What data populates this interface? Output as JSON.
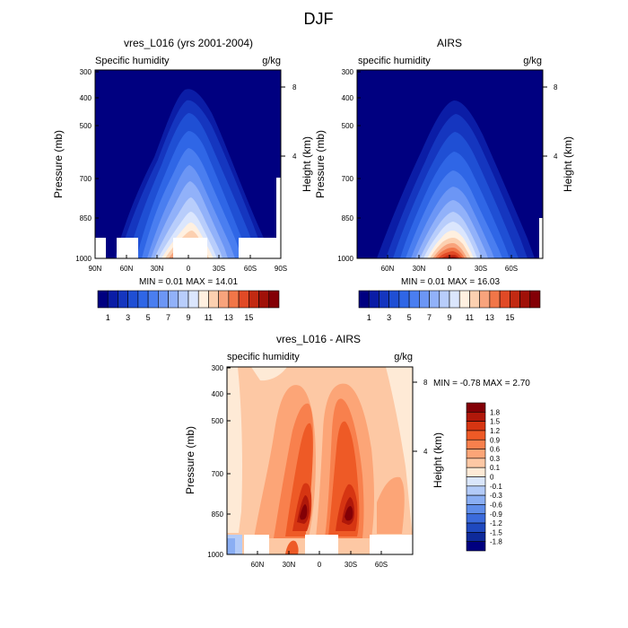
{
  "figure_title": "DJF",
  "chart_data": [
    {
      "type": "contour",
      "title": "vres_L016 (yrs 2001-2004)",
      "left_string": "Specific humidity",
      "right_string": "g/kg",
      "ylabel": "Pressure (mb)",
      "ylabel_right": "Height (km)",
      "yticks": [
        "300",
        "400",
        "500",
        "700",
        "850",
        "1000"
      ],
      "yticks_right": [
        "8",
        "4"
      ],
      "xticks": [
        "90N",
        "60N",
        "30N",
        "0",
        "30S",
        "60S",
        "90S"
      ],
      "stats": "MIN =   0.01  MAX =  14.01",
      "peak": 14.01
    },
    {
      "type": "contour",
      "title": "AIRS",
      "left_string": "specific humidity",
      "right_string": "g/kg",
      "ylabel": "Pressure (mb)",
      "ylabel_right": "Height (km)",
      "yticks": [
        "300",
        "400",
        "500",
        "700",
        "850",
        "1000"
      ],
      "yticks_right": [
        "8",
        "4"
      ],
      "xticks": [
        "60N",
        "30N",
        "0",
        "30S",
        "60S"
      ],
      "stats": "MIN =   0.01  MAX =  16.03",
      "peak": 16.03
    },
    {
      "type": "contour",
      "title": "vres_L016 - AIRS",
      "left_string": "specific humidity",
      "right_string": "g/kg",
      "ylabel": "Pressure (mb)",
      "ylabel_right": "Height (km)",
      "yticks": [
        "300",
        "400",
        "500",
        "700",
        "850",
        "1000"
      ],
      "yticks_right": [
        "8",
        "4"
      ],
      "xticks": [
        "60N",
        "30N",
        "0",
        "30S",
        "60S"
      ],
      "stats": "MIN = -0.78  MAX =   2.70",
      "min": -0.78,
      "max": 2.7
    }
  ],
  "colorbar_abs": {
    "labels": [
      "1",
      "3",
      "5",
      "7",
      "9",
      "11",
      "13",
      "15"
    ],
    "colors": [
      "#000080",
      "#0b1da6",
      "#1536bf",
      "#1f4fd4",
      "#2f66e6",
      "#4a7ef0",
      "#6c96f5",
      "#91b1f9",
      "#b8cdfb",
      "#dbe6fd",
      "#fff0e0",
      "#fcd0b0",
      "#f8a37c",
      "#f17648",
      "#e14a26",
      "#c22a12",
      "#a01108",
      "#830006"
    ]
  },
  "colorbar_diff": {
    "labels": [
      "1.8",
      "1.5",
      "1.2",
      "0.9",
      "0.6",
      "0.3",
      "0.1",
      "0",
      "-0.1",
      "-0.3",
      "-0.6",
      "-0.9",
      "-1.2",
      "-1.5",
      "-1.8"
    ],
    "colors": [
      "#830006",
      "#b0180a",
      "#d63512",
      "#ee5a26",
      "#f8804d",
      "#fca577",
      "#fdc8a4",
      "#feead6",
      "#dae6fb",
      "#b3cbf8",
      "#8aaef3",
      "#5f8dea",
      "#3b6bdc",
      "#1f49bf",
      "#0e2a9a",
      "#000080"
    ]
  }
}
